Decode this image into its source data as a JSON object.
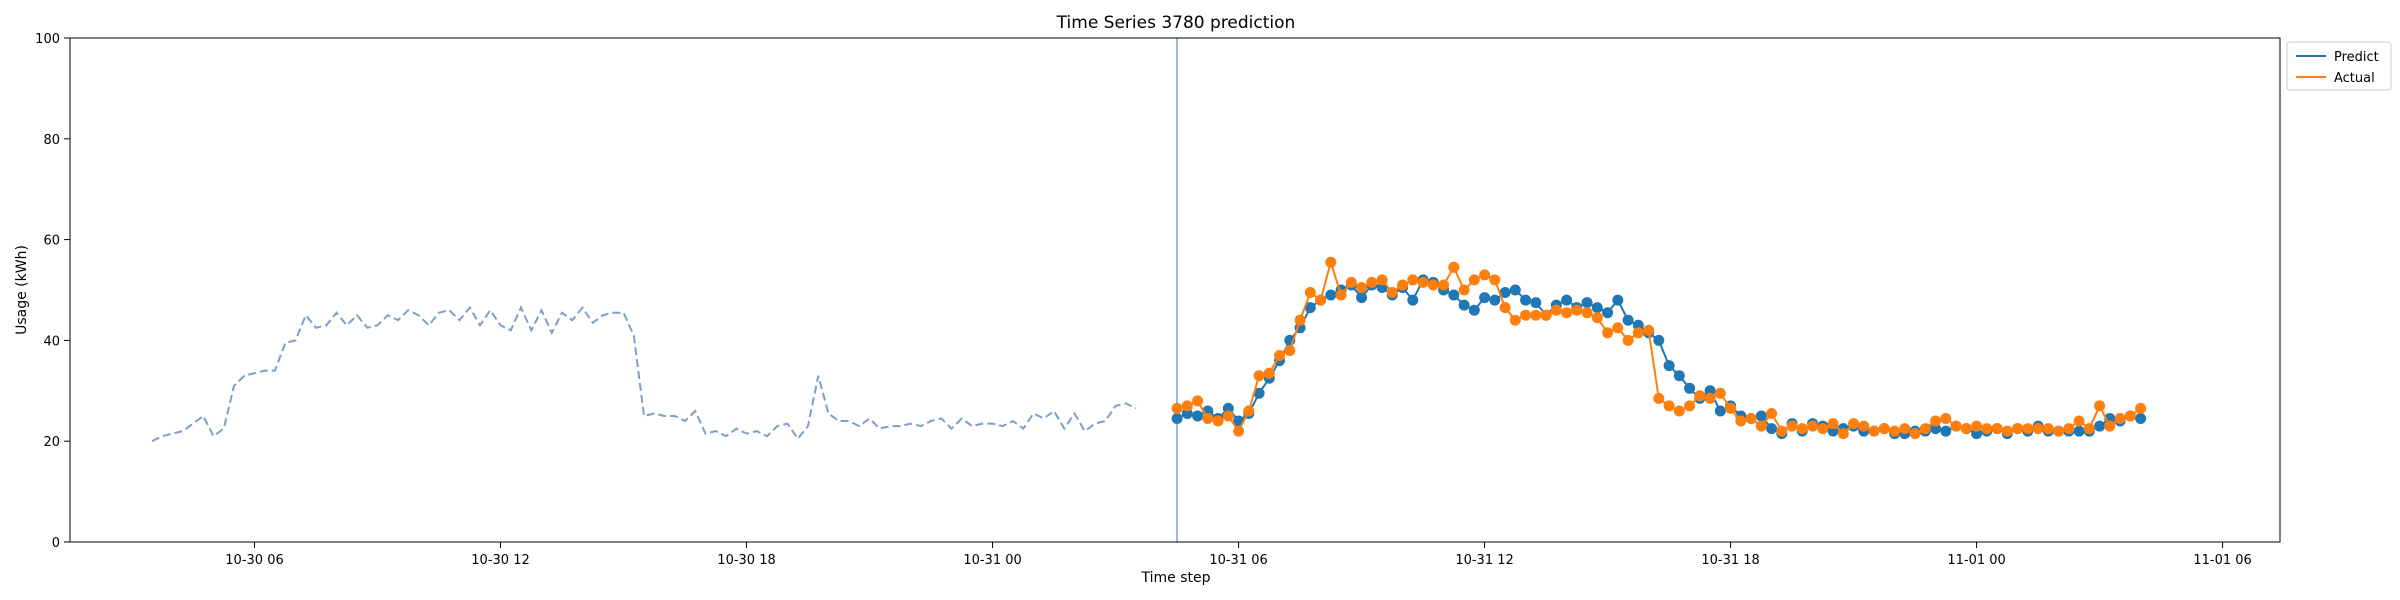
{
  "chart_data": {
    "type": "line",
    "title": "Time Series 3780 prediction",
    "xlabel": "Time step",
    "ylabel": "Usage (kWh)",
    "ylim": [
      0,
      100
    ],
    "xlim_hours_label_ticks": [
      "10-30 06",
      "10-30 12",
      "10-30 18",
      "10-31 00",
      "10-31 06",
      "10-31 12",
      "10-31 18",
      "11-01 00",
      "11-01 06"
    ],
    "yticks": [
      0,
      20,
      40,
      60,
      80,
      100
    ],
    "legend_position": "upper-right-outside",
    "grid": false,
    "colors": {
      "history": "#7f9ec8",
      "predict": "#1f77b4",
      "actual": "#ff7f0e",
      "cutoff": "#7f9ec8"
    },
    "history": {
      "start": "10-30 03:30",
      "step_minutes": 15,
      "values": [
        20.0,
        21.0,
        21.5,
        22.0,
        23.5,
        25.0,
        21.0,
        22.5,
        31.0,
        33.0,
        33.5,
        34.0,
        34.0,
        39.5,
        40.0,
        45.0,
        42.5,
        43.0,
        45.5,
        43.0,
        45.0,
        42.5,
        43.0,
        45.0,
        44.0,
        46.0,
        45.0,
        43.0,
        45.5,
        46.0,
        44.0,
        46.5,
        43.0,
        46.0,
        43.0,
        42.0,
        46.5,
        42.0,
        46.0,
        41.5,
        45.5,
        44.0,
        46.5,
        43.5,
        45.0,
        45.5,
        45.5,
        41.0,
        25.0,
        25.5,
        25.0,
        25.0,
        24.0,
        26.0,
        21.5,
        22.0,
        21.0,
        22.5,
        21.5,
        22.0,
        21.0,
        23.0,
        23.5,
        20.5,
        23.0,
        33.0,
        25.5,
        24.0,
        24.0,
        23.0,
        24.5,
        22.5,
        23.0,
        23.0,
        23.5,
        23.0,
        24.0,
        24.5,
        22.5,
        24.5,
        23.0,
        23.5,
        23.5,
        23.0,
        24.0,
        22.5,
        25.5,
        24.5,
        26.0,
        22.5,
        25.5,
        22.0,
        23.5,
        24.0,
        27.0,
        27.5,
        26.5
      ]
    },
    "cutoff": "10-31 04:30",
    "series": [
      {
        "name": "Predict",
        "start": "10-31 04:30",
        "step_minutes": 15,
        "values": [
          24.5,
          25.5,
          25.0,
          26.0,
          24.5,
          26.5,
          24.0,
          25.5,
          29.5,
          32.5,
          36.0,
          40.0,
          42.5,
          46.5,
          48.0,
          49.0,
          50.0,
          51.0,
          48.5,
          51.0,
          50.5,
          49.0,
          50.5,
          48.0,
          52.0,
          51.5,
          50.0,
          49.0,
          47.0,
          46.0,
          48.5,
          48.0,
          49.5,
          50.0,
          48.0,
          47.5,
          45.0,
          47.0,
          48.0,
          46.5,
          47.5,
          46.5,
          45.5,
          48.0,
          44.0,
          43.0,
          41.5,
          40.0,
          35.0,
          33.0,
          30.5,
          28.5,
          30.0,
          26.0,
          27.0,
          25.0,
          24.5,
          25.0,
          22.5,
          21.5,
          23.5,
          22.0,
          23.5,
          23.0,
          22.0,
          22.5,
          23.0,
          22.0,
          22.0,
          22.5,
          21.5,
          21.5,
          22.0,
          22.0,
          22.5,
          22.0,
          23.0,
          22.5,
          21.5,
          22.0,
          22.5,
          21.5,
          22.5,
          22.0,
          23.0,
          22.0,
          22.0,
          22.0,
          22.0,
          22.0,
          23.0,
          24.5,
          24.0,
          25.0,
          24.5
        ]
      },
      {
        "name": "Actual",
        "start": "10-31 04:30",
        "step_minutes": 15,
        "values": [
          26.5,
          27.0,
          28.0,
          24.5,
          24.0,
          25.0,
          22.0,
          26.0,
          33.0,
          33.5,
          37.0,
          38.0,
          44.0,
          49.5,
          48.0,
          55.5,
          49.0,
          51.5,
          50.5,
          51.5,
          52.0,
          49.5,
          51.0,
          52.0,
          51.5,
          51.0,
          51.0,
          54.5,
          50.0,
          52.0,
          53.0,
          52.0,
          46.5,
          44.0,
          45.0,
          45.0,
          45.0,
          46.0,
          45.5,
          46.0,
          45.5,
          44.5,
          41.5,
          42.5,
          40.0,
          41.5,
          42.0,
          28.5,
          27.0,
          26.0,
          27.0,
          29.0,
          28.5,
          29.5,
          26.5,
          24.0,
          24.5,
          23.0,
          25.5,
          22.0,
          23.0,
          22.5,
          23.0,
          22.5,
          23.5,
          21.5,
          23.5,
          23.0,
          22.0,
          22.5,
          22.0,
          22.5,
          21.5,
          22.5,
          24.0,
          24.5,
          23.0,
          22.5,
          23.0,
          22.5,
          22.5,
          22.0,
          22.5,
          22.5,
          22.5,
          22.5,
          22.0,
          22.5,
          24.0,
          22.5,
          27.0,
          23.0,
          24.5,
          25.0,
          26.5
        ]
      }
    ]
  }
}
